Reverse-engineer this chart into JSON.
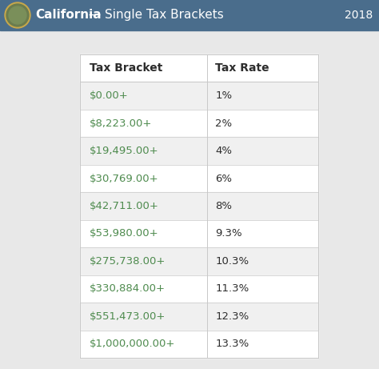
{
  "title_bold": "California",
  "title_rest": " — Single Tax Brackets",
  "year": "2018",
  "header_bg": "#4a6d8c",
  "header_text_color": "#ffffff",
  "col1_header": "Tax Bracket",
  "col2_header": "Tax Rate",
  "brackets": [
    "$0.00+",
    "$8,223.00+",
    "$19,495.00+",
    "$30,769.00+",
    "$42,711.00+",
    "$53,980.00+",
    "$275,738.00+",
    "$330,884.00+",
    "$551,473.00+",
    "$1,000,000.00+"
  ],
  "rates": [
    "1%",
    "2%",
    "4%",
    "6%",
    "8%",
    "9.3%",
    "10.3%",
    "11.3%",
    "12.3%",
    "13.3%"
  ],
  "bracket_color": "#4e8b4e",
  "rate_color": "#2d2d2d",
  "header_col_color": "#2d2d2d",
  "row_bg_odd": "#f0f0f0",
  "row_bg_even": "#ffffff",
  "table_border_color": "#c8c8c8",
  "outer_bg": "#e8e8e8",
  "table_inner_bg": "#ffffff",
  "figsize": [
    4.74,
    4.61
  ],
  "dpi": 100
}
